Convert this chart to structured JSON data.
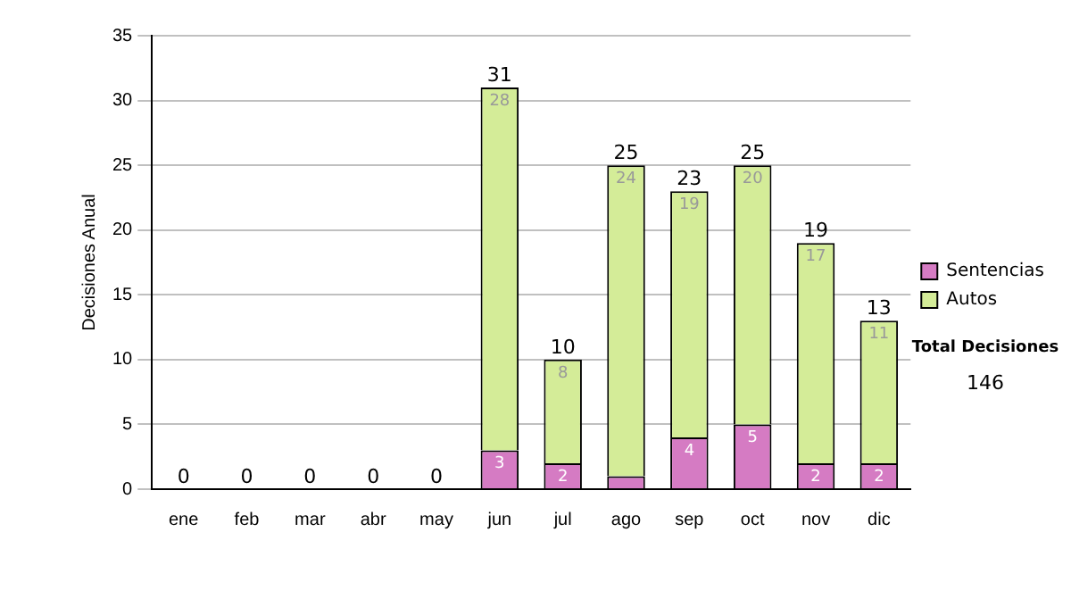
{
  "chart_data": {
    "type": "bar",
    "stacked": true,
    "ylabel": "Decisiones Anual",
    "categories": [
      "ene",
      "feb",
      "mar",
      "abr",
      "may",
      "jun",
      "jul",
      "ago",
      "sep",
      "oct",
      "nov",
      "dic"
    ],
    "series": [
      {
        "name": "Sentencias",
        "color": "#d57bc3",
        "values": [
          0,
          0,
          0,
          0,
          0,
          3,
          2,
          1,
          4,
          5,
          2,
          2
        ],
        "value_labels": [
          null,
          null,
          null,
          null,
          null,
          "3",
          "2",
          null,
          "4",
          "5",
          "2",
          "2"
        ]
      },
      {
        "name": "Autos",
        "color": "#d4ec98",
        "values": [
          0,
          0,
          0,
          0,
          0,
          28,
          8,
          24,
          19,
          20,
          17,
          11
        ],
        "value_labels": [
          null,
          null,
          null,
          null,
          null,
          "28",
          "8",
          "24",
          "19",
          "20",
          "17",
          "11"
        ]
      }
    ],
    "totals": [
      "0",
      "0",
      "0",
      "0",
      "0",
      "31",
      "10",
      "25",
      "23",
      "25",
      "19",
      "13"
    ],
    "ylim": [
      0,
      35
    ],
    "yticks": [
      0,
      5,
      10,
      15,
      20,
      25,
      30,
      35
    ],
    "grid": "y",
    "legend": "right",
    "annotations": [
      "Total Decisiones",
      "146"
    ]
  }
}
